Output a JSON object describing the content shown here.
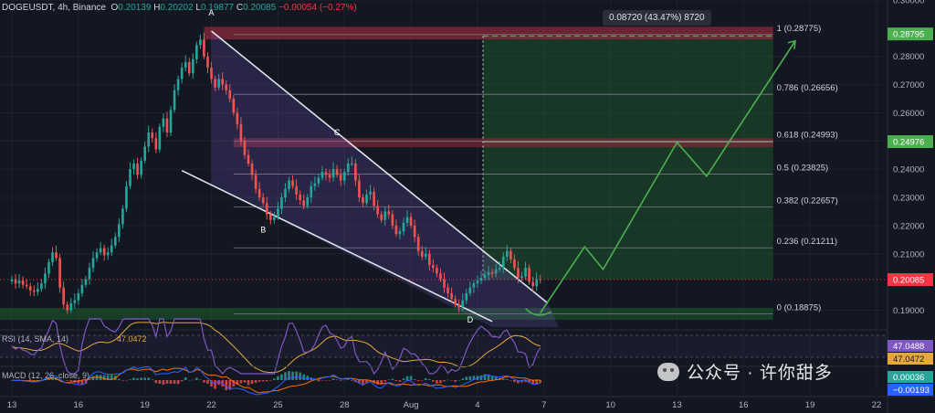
{
  "header": {
    "symbol": "DOGEUSDT, 4h, Binance",
    "o_label": "O",
    "o": "0.20139",
    "h_label": "H",
    "h": "0.20202",
    "l_label": "L",
    "l": "0.19877",
    "c_label": "C",
    "c": "0.20085",
    "change": "−0.00054 (−0.27%)"
  },
  "measure_label": "0.08720 (43.47%) 8720",
  "watermark": "公众号 · 许你甜多",
  "colors": {
    "background": "#131722",
    "up": "#26a69a",
    "down": "#ef5350",
    "fib_line": "#787b86",
    "wedge_fill": "#7b5cc7",
    "target_zone": "#1f5f2e",
    "resistance": "#8c2a38",
    "projection": "#4caf50",
    "rsi_line": "#7e57c2",
    "rsi_ma": "#e5a93b",
    "macd_line": "#2962ff",
    "signal_line": "#ff6d00"
  },
  "chart_data": {
    "type": "candlestick",
    "symbol": "DOGEUSDT",
    "timeframe": "4h",
    "exchange": "Binance",
    "price_axis": {
      "range": [
        0.184,
        0.3
      ],
      "ticks": [
        "0.30000",
        "0.28000",
        "0.27000",
        "0.26000",
        "0.25000",
        "0.24000",
        "0.23000",
        "0.22000",
        "0.21000",
        "0.19000"
      ],
      "badges": [
        {
          "label": "0.28795",
          "value": 0.28795,
          "color": "#4caf50"
        },
        {
          "label": "0.24976",
          "value": 0.24976,
          "color": "#4caf50"
        },
        {
          "label": "0.20085",
          "value": 0.20085,
          "color": "#f23645"
        }
      ]
    },
    "time_axis": {
      "labels": [
        "13",
        "16",
        "19",
        "22",
        "25",
        "28",
        "Aug",
        "4",
        "7",
        "10",
        "13",
        "16",
        "19",
        "22"
      ],
      "label_bars": [
        0,
        18,
        36,
        54,
        72,
        90,
        108,
        126,
        144,
        162,
        180,
        198,
        216,
        234
      ]
    },
    "fib_levels": [
      {
        "label": "1 (0.28775)",
        "value": 0.28775
      },
      {
        "label": "0.786 (0.26656)",
        "value": 0.26656
      },
      {
        "label": "0.618 (0.24993)",
        "value": 0.24993
      },
      {
        "label": "0.5 (0.23825)",
        "value": 0.23825
      },
      {
        "label": "0.382 (0.22657)",
        "value": 0.22657
      },
      {
        "label": "0.236 (0.21211)",
        "value": 0.21211
      },
      {
        "label": "0 (0.18875)",
        "value": 0.18875
      }
    ],
    "wedge_labels": [
      {
        "label": "A",
        "bar": 54,
        "value": 0.2945
      },
      {
        "label": "B",
        "bar": 68,
        "value": 0.2175
      },
      {
        "label": "C",
        "bar": 88,
        "value": 0.252
      },
      {
        "label": "D",
        "bar": 124,
        "value": 0.1857
      }
    ],
    "projection_path": [
      {
        "bar": 143,
        "value": 0.189
      },
      {
        "bar": 155,
        "value": 0.2125
      },
      {
        "bar": 160,
        "value": 0.2045
      },
      {
        "bar": 180,
        "value": 0.2495
      },
      {
        "bar": 188,
        "value": 0.2375
      },
      {
        "bar": 212,
        "value": 0.2855
      }
    ],
    "ohlc_close": [
      0.201,
      0.1995,
      0.2005,
      0.199,
      0.1985,
      0.197,
      0.1965,
      0.1975,
      0.1995,
      0.203,
      0.207,
      0.2105,
      0.2085,
      0.198,
      0.192,
      0.19,
      0.1925,
      0.1935,
      0.196,
      0.199,
      0.201,
      0.205,
      0.2085,
      0.2105,
      0.212,
      0.2095,
      0.2105,
      0.213,
      0.216,
      0.2205,
      0.226,
      0.234,
      0.24,
      0.242,
      0.238,
      0.243,
      0.248,
      0.253,
      0.251,
      0.247,
      0.255,
      0.258,
      0.253,
      0.261,
      0.268,
      0.272,
      0.276,
      0.278,
      0.274,
      0.279,
      0.284,
      0.286,
      0.28,
      0.276,
      0.272,
      0.269,
      0.272,
      0.27,
      0.268,
      0.265,
      0.26,
      0.256,
      0.25,
      0.245,
      0.242,
      0.238,
      0.233,
      0.23,
      0.228,
      0.224,
      0.222,
      0.223,
      0.226,
      0.23,
      0.233,
      0.236,
      0.234,
      0.231,
      0.229,
      0.227,
      0.23,
      0.234,
      0.235,
      0.237,
      0.239,
      0.238,
      0.237,
      0.24,
      0.238,
      0.236,
      0.239,
      0.242,
      0.242,
      0.236,
      0.23,
      0.228,
      0.231,
      0.232,
      0.227,
      0.224,
      0.222,
      0.225,
      0.224,
      0.22,
      0.217,
      0.218,
      0.221,
      0.223,
      0.22,
      0.216,
      0.211,
      0.209,
      0.21,
      0.206,
      0.205,
      0.203,
      0.201,
      0.198,
      0.196,
      0.194,
      0.192,
      0.191,
      0.1935,
      0.196,
      0.198,
      0.1995,
      0.2005,
      0.2015,
      0.2025,
      0.2035,
      0.203,
      0.2045,
      0.205,
      0.209,
      0.211,
      0.208,
      0.205,
      0.2015,
      0.202,
      0.205,
      0.2,
      0.1985,
      0.201,
      0.2008
    ],
    "rsi": {
      "label": "RSI (14, SMA, 14)",
      "value": "47.0488",
      "ma_value": "47.0472"
    },
    "macd": {
      "label": "MACD (12, 26, close, 9)",
      "values": [
        "0.00036",
        "−0.00193"
      ]
    }
  }
}
